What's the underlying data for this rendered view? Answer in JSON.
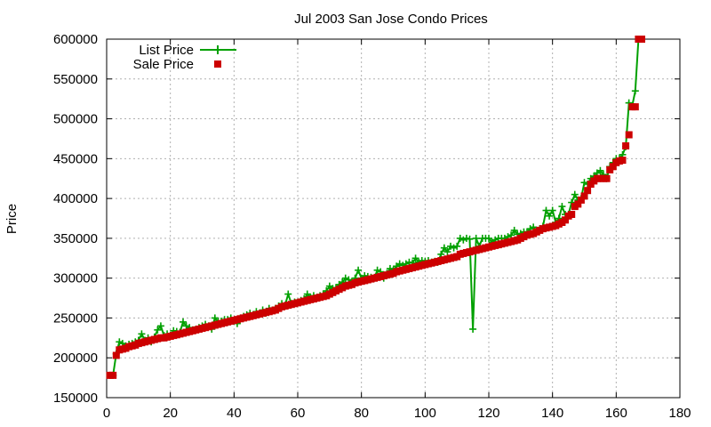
{
  "chart_data": {
    "type": "line",
    "title": "Jul 2003 San Jose Condo Prices",
    "xlabel": "",
    "ylabel": "Price",
    "xlim": [
      0,
      180
    ],
    "ylim": [
      150000,
      600000
    ],
    "x_ticks": [
      0,
      20,
      40,
      60,
      80,
      100,
      120,
      140,
      160,
      180
    ],
    "y_ticks": [
      150000,
      200000,
      250000,
      300000,
      350000,
      400000,
      450000,
      500000,
      550000,
      600000
    ],
    "grid": true,
    "legend_position": "top-left",
    "series": [
      {
        "name": "List Price",
        "style": "line+plus",
        "color": "#00a000",
        "x": [
          1,
          2,
          3,
          4,
          5,
          6,
          7,
          8,
          9,
          10,
          11,
          12,
          13,
          14,
          15,
          16,
          17,
          18,
          19,
          20,
          21,
          22,
          23,
          24,
          25,
          26,
          27,
          28,
          29,
          30,
          31,
          32,
          33,
          34,
          35,
          36,
          37,
          38,
          39,
          40,
          41,
          42,
          43,
          44,
          45,
          46,
          47,
          48,
          49,
          50,
          51,
          52,
          53,
          54,
          55,
          56,
          57,
          58,
          59,
          60,
          61,
          62,
          63,
          64,
          65,
          66,
          67,
          68,
          69,
          70,
          71,
          72,
          73,
          74,
          75,
          76,
          77,
          78,
          79,
          80,
          81,
          82,
          83,
          84,
          85,
          86,
          87,
          88,
          89,
          90,
          91,
          92,
          93,
          94,
          95,
          96,
          97,
          98,
          99,
          100,
          101,
          102,
          103,
          104,
          105,
          106,
          107,
          108,
          109,
          110,
          111,
          112,
          113,
          114,
          115,
          116,
          117,
          118,
          119,
          120,
          121,
          122,
          123,
          124,
          125,
          126,
          127,
          128,
          129,
          130,
          131,
          132,
          133,
          134,
          135,
          136,
          137,
          138,
          139,
          140,
          141,
          142,
          143,
          144,
          145,
          146,
          147,
          148,
          149,
          150,
          151,
          152,
          153,
          154,
          155,
          156,
          157,
          158,
          159,
          160,
          161,
          162,
          163,
          164,
          165,
          166,
          167,
          168
        ],
        "y": [
          178000,
          178000,
          205000,
          220000,
          218000,
          215000,
          217000,
          218000,
          220000,
          222000,
          230000,
          222000,
          225000,
          220000,
          226000,
          235000,
          240000,
          228000,
          230000,
          228000,
          234000,
          233000,
          232000,
          245000,
          240000,
          238000,
          235000,
          236000,
          238000,
          240000,
          242000,
          240000,
          236000,
          250000,
          245000,
          246000,
          248000,
          248000,
          250000,
          246000,
          243000,
          250000,
          252000,
          254000,
          256000,
          254000,
          258000,
          256000,
          260000,
          256000,
          262000,
          260000,
          262000,
          265000,
          268000,
          266000,
          280000,
          268000,
          270000,
          270000,
          272000,
          274000,
          280000,
          276000,
          278000,
          276000,
          278000,
          280000,
          284000,
          290000,
          287000,
          288000,
          292000,
          295000,
          300000,
          298000,
          295000,
          300000,
          310000,
          300000,
          303000,
          302000,
          301000,
          300000,
          310000,
          308000,
          300000,
          306000,
          312000,
          310000,
          315000,
          318000,
          316000,
          318000,
          320000,
          319000,
          325000,
          320000,
          322000,
          321000,
          322000,
          320000,
          321000,
          320000,
          330000,
          338000,
          333000,
          340000,
          338000,
          340000,
          350000,
          348000,
          350000,
          349000,
          236000,
          350000,
          340000,
          350000,
          350000,
          350000,
          345000,
          348000,
          350000,
          350000,
          350000,
          352000,
          354000,
          360000,
          355000,
          356000,
          358000,
          358000,
          362000,
          364000,
          360000,
          362000,
          365000,
          385000,
          378000,
          385000,
          370000,
          375000,
          390000,
          380000,
          380000,
          395000,
          405000,
          398000,
          400000,
          420000,
          418000,
          425000,
          428000,
          432000,
          435000,
          430000,
          425000,
          440000,
          445000,
          450000,
          450000,
          455000,
          465000,
          520000,
          516000,
          535000,
          600000,
          600000
        ]
      },
      {
        "name": "Sale Price",
        "style": "squares",
        "color": "#cc0000",
        "x": [
          1,
          2,
          3,
          4,
          5,
          6,
          7,
          8,
          9,
          10,
          11,
          12,
          13,
          14,
          15,
          16,
          17,
          18,
          19,
          20,
          21,
          22,
          23,
          24,
          25,
          26,
          27,
          28,
          29,
          30,
          31,
          32,
          33,
          34,
          35,
          36,
          37,
          38,
          39,
          40,
          41,
          42,
          43,
          44,
          45,
          46,
          47,
          48,
          49,
          50,
          51,
          52,
          53,
          54,
          55,
          56,
          57,
          58,
          59,
          60,
          61,
          62,
          63,
          64,
          65,
          66,
          67,
          68,
          69,
          70,
          71,
          72,
          73,
          74,
          75,
          76,
          77,
          78,
          79,
          80,
          81,
          82,
          83,
          84,
          85,
          86,
          87,
          88,
          89,
          90,
          91,
          92,
          93,
          94,
          95,
          96,
          97,
          98,
          99,
          100,
          101,
          102,
          103,
          104,
          105,
          106,
          107,
          108,
          109,
          110,
          111,
          112,
          113,
          114,
          115,
          116,
          117,
          118,
          119,
          120,
          121,
          122,
          123,
          124,
          125,
          126,
          127,
          128,
          129,
          130,
          131,
          132,
          133,
          134,
          135,
          136,
          137,
          138,
          139,
          140,
          141,
          142,
          143,
          144,
          145,
          146,
          147,
          148,
          149,
          150,
          151,
          152,
          153,
          154,
          155,
          156,
          157,
          158,
          159,
          160,
          161,
          162,
          163,
          164,
          165,
          166,
          167,
          168
        ],
        "y": [
          178000,
          178000,
          203000,
          210000,
          211000,
          212000,
          214000,
          215000,
          216000,
          218000,
          219000,
          220000,
          221000,
          222000,
          223000,
          224000,
          225000,
          225000,
          226000,
          227000,
          228000,
          229000,
          230000,
          231000,
          232000,
          233000,
          234000,
          235000,
          236000,
          237000,
          238000,
          239000,
          240000,
          241000,
          242000,
          243000,
          244000,
          245000,
          246000,
          247000,
          248000,
          249000,
          250000,
          251000,
          252000,
          253000,
          254000,
          255000,
          256000,
          257000,
          258000,
          259000,
          260000,
          262000,
          264000,
          265000,
          266000,
          267000,
          268000,
          269000,
          270000,
          271000,
          272000,
          273000,
          274000,
          275000,
          276000,
          277000,
          278000,
          280000,
          282000,
          284000,
          286000,
          288000,
          290000,
          291000,
          292000,
          294000,
          295000,
          296000,
          297000,
          298000,
          299000,
          300000,
          301000,
          302000,
          303000,
          304000,
          305000,
          306000,
          308000,
          309000,
          310000,
          311000,
          312000,
          313000,
          314000,
          315000,
          316000,
          317000,
          318000,
          319000,
          320000,
          321000,
          322000,
          323000,
          324000,
          325000,
          326000,
          327000,
          330000,
          331000,
          332000,
          333000,
          334000,
          335000,
          336000,
          337000,
          338000,
          339000,
          340000,
          341000,
          342000,
          343000,
          344000,
          345000,
          346000,
          347000,
          348000,
          350000,
          352000,
          354000,
          355000,
          356000,
          358000,
          360000,
          362000,
          363000,
          364000,
          365000,
          366000,
          368000,
          370000,
          373000,
          378000,
          380000,
          390000,
          393000,
          398000,
          403000,
          410000,
          418000,
          422000,
          425000,
          425000,
          425000,
          425000,
          436000,
          440000,
          445000,
          447000,
          448000,
          466000,
          480000,
          515000,
          515000,
          600000,
          600000
        ]
      }
    ]
  }
}
